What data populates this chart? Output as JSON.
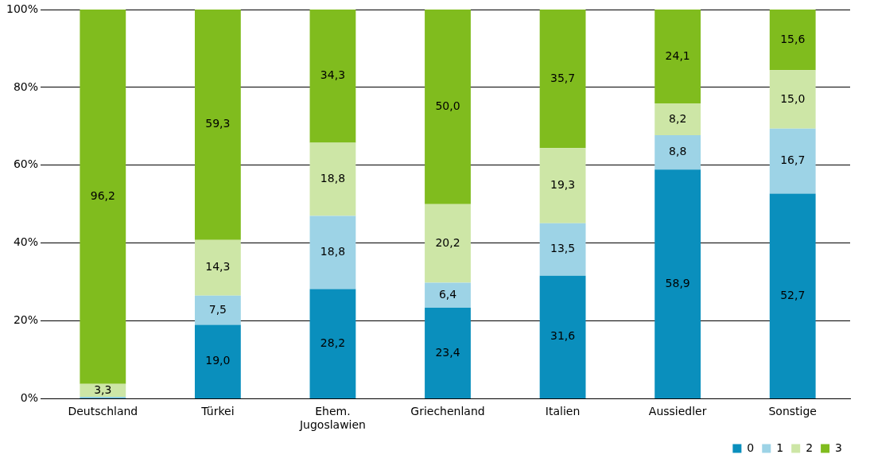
{
  "chart_data": {
    "type": "bar",
    "stacked": true,
    "categories": [
      "Deutschland",
      "Türkei",
      "Ehem. Jugoslawien",
      "Griechenland",
      "Italien",
      "Aussiedler",
      "Sonstige"
    ],
    "series": [
      {
        "name": "0",
        "color": "#0a8fbd",
        "values": [
          0.2,
          19.0,
          28.2,
          23.4,
          31.6,
          58.9,
          52.7
        ],
        "value_labels": [
          null,
          "19,0",
          "28,2",
          "23,4",
          "31,6",
          "58,9",
          "52,7"
        ]
      },
      {
        "name": "1",
        "color": "#9dd3e6",
        "values": [
          0.3,
          7.5,
          18.8,
          6.4,
          13.5,
          8.8,
          16.7
        ],
        "value_labels": [
          null,
          "7,5",
          "18,8",
          "6,4",
          "13,5",
          "8,8",
          "16,7"
        ]
      },
      {
        "name": "2",
        "color": "#cde6a6",
        "values": [
          3.3,
          14.3,
          18.8,
          20.2,
          19.3,
          8.2,
          15.0
        ],
        "value_labels": [
          "3,3",
          "14,3",
          "18,8",
          "20,2",
          "19,3",
          "8,2",
          "15,0"
        ]
      },
      {
        "name": "3",
        "color": "#80bc1e",
        "values": [
          96.2,
          59.3,
          34.3,
          50.0,
          35.7,
          24.1,
          15.6
        ],
        "value_labels": [
          "96,2",
          "59,3",
          "34,3",
          "50,0",
          "35,7",
          "24,1",
          "15,6"
        ]
      }
    ],
    "ylim": [
      0,
      100
    ],
    "yticks": [
      {
        "value": 0,
        "label": "0%"
      },
      {
        "value": 20,
        "label": "20%"
      },
      {
        "value": 40,
        "label": "40%"
      },
      {
        "value": 60,
        "label": "60%"
      },
      {
        "value": 80,
        "label": "80%"
      },
      {
        "value": 100,
        "label": "100%"
      }
    ],
    "grid": "y",
    "legend": "bottom right"
  }
}
